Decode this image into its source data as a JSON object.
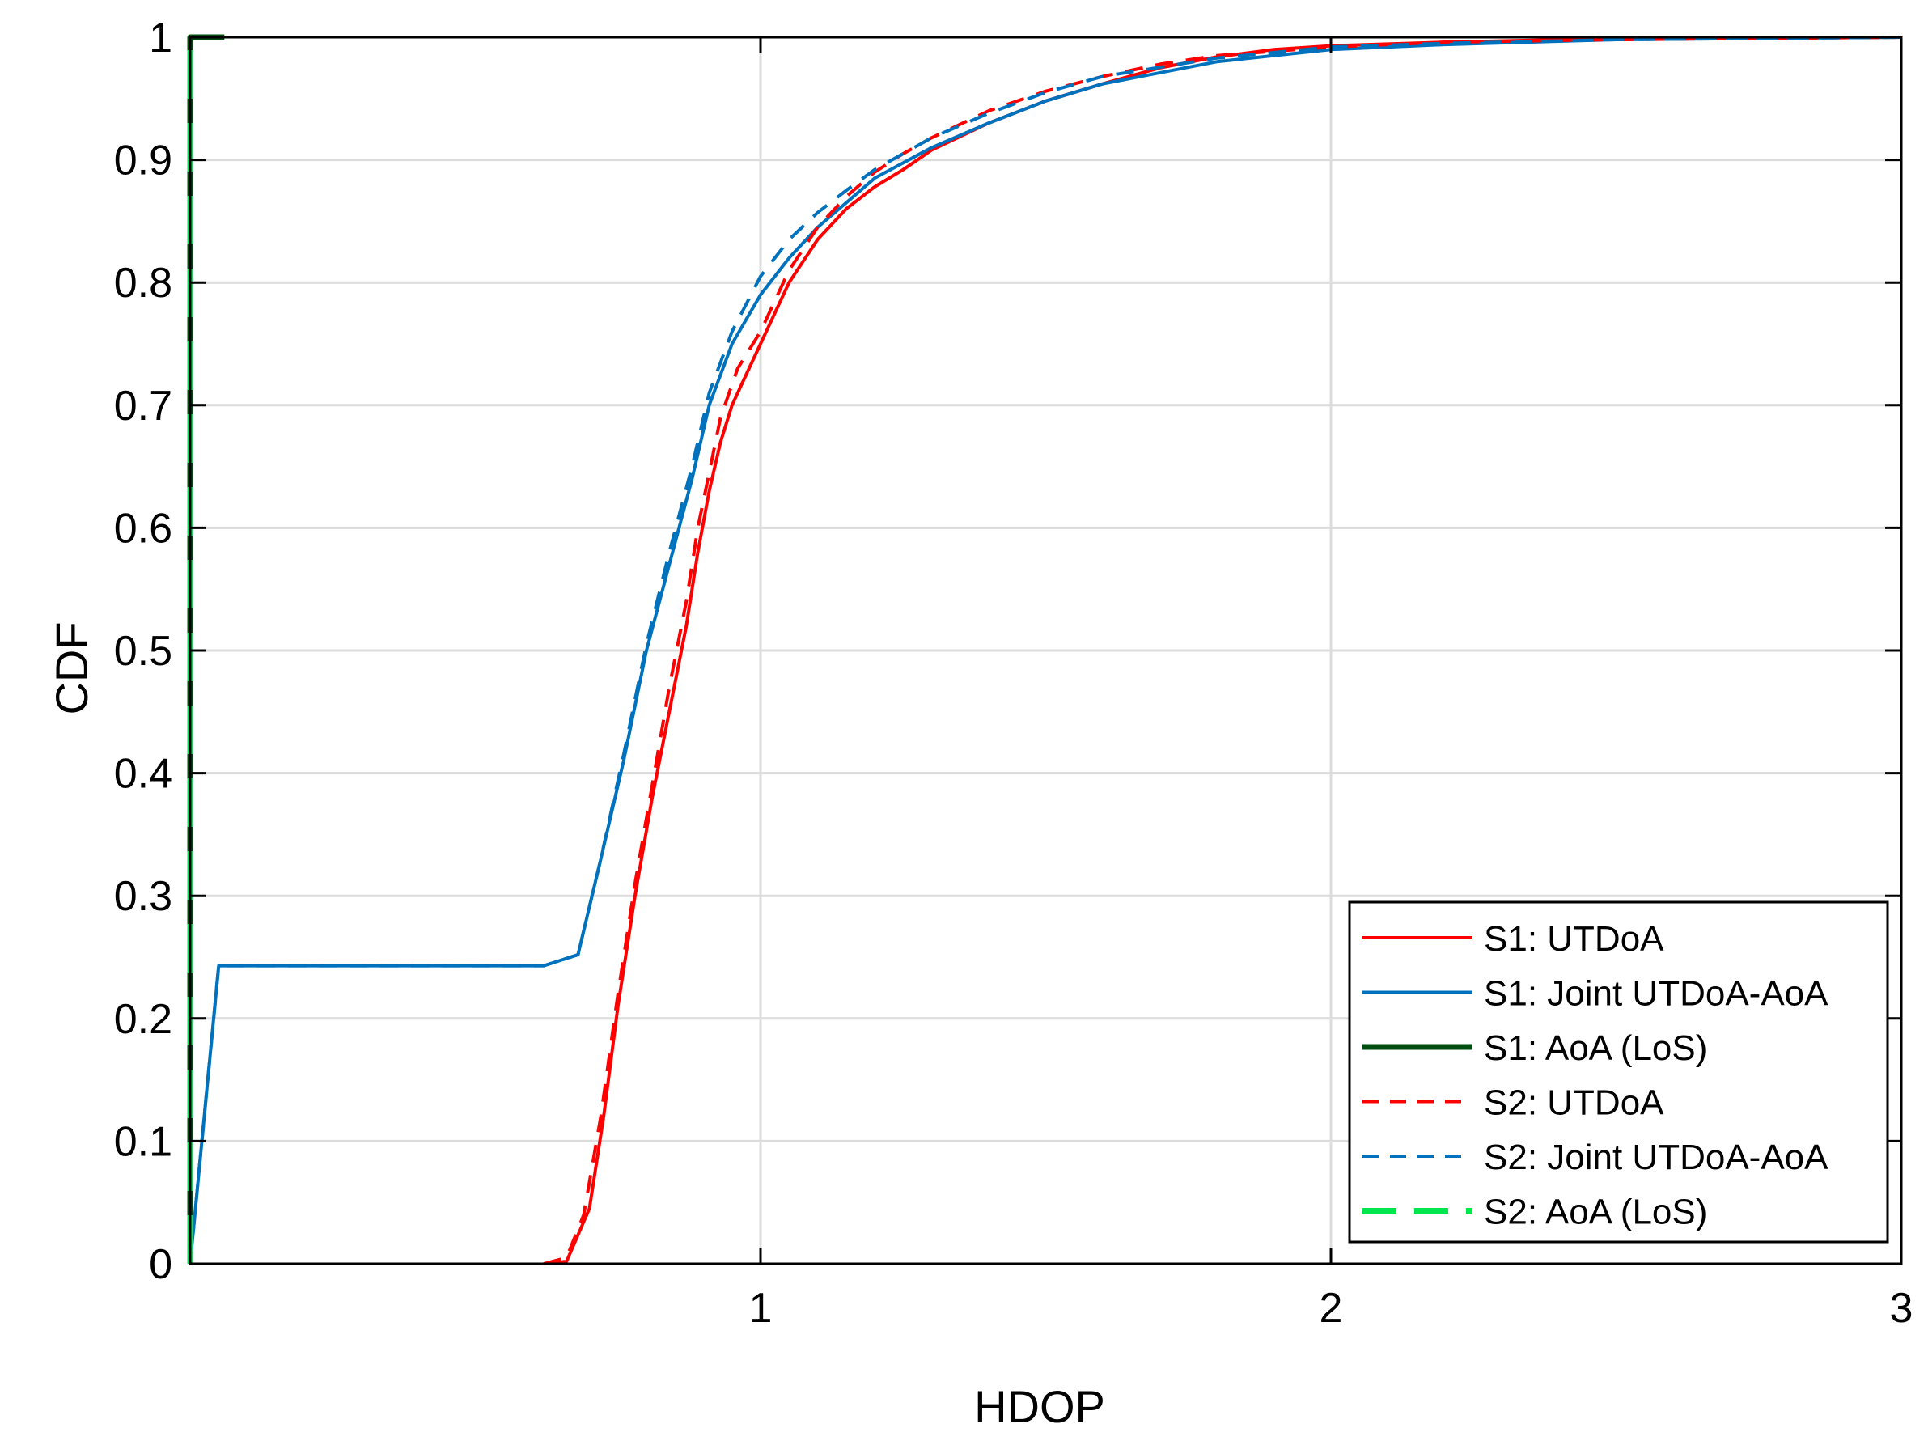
{
  "chart_data": {
    "type": "line",
    "title": "",
    "xlabel": "HDOP",
    "ylabel": "CDF",
    "xlim": [
      0,
      3
    ],
    "ylim": [
      0,
      1
    ],
    "xticks": [
      1,
      2,
      3
    ],
    "xtick_labels": [
      "1",
      "2",
      "3"
    ],
    "yticks": [
      0,
      0.1,
      0.2,
      0.3,
      0.4,
      0.5,
      0.6,
      0.7,
      0.8,
      0.9,
      1
    ],
    "ytick_labels": [
      "0",
      "0.1",
      "0.2",
      "0.3",
      "0.4",
      "0.5",
      "0.6",
      "0.7",
      "0.8",
      "0.9",
      "1"
    ],
    "grid": true,
    "legend_position": "bottom-right",
    "series": [
      {
        "name": "S1: UTDoA",
        "color": "#ff0000",
        "style": "solid",
        "width": 4,
        "x": [
          0.62,
          0.66,
          0.7,
          0.725,
          0.75,
          0.78,
          0.81,
          0.84,
          0.87,
          0.89,
          0.91,
          0.93,
          0.95,
          0.97,
          1.0,
          1.05,
          1.1,
          1.15,
          1.2,
          1.25,
          1.3,
          1.4,
          1.5,
          1.6,
          1.7,
          1.8,
          1.9,
          2.0,
          2.2,
          2.4,
          2.6,
          3.0
        ],
        "y": [
          0.0,
          0.002,
          0.045,
          0.12,
          0.21,
          0.3,
          0.38,
          0.45,
          0.52,
          0.58,
          0.63,
          0.67,
          0.7,
          0.72,
          0.75,
          0.8,
          0.835,
          0.86,
          0.878,
          0.892,
          0.908,
          0.93,
          0.948,
          0.962,
          0.975,
          0.984,
          0.99,
          0.993,
          0.996,
          0.998,
          0.999,
          1.0
        ]
      },
      {
        "name": "S1: Joint UTDoA-AoA",
        "color": "#0072bd",
        "style": "solid",
        "width": 4,
        "x": [
          0.0,
          0.05,
          0.6,
          0.62,
          0.68,
          0.72,
          0.76,
          0.8,
          0.84,
          0.88,
          0.91,
          0.95,
          1.0,
          1.05,
          1.1,
          1.15,
          1.2,
          1.3,
          1.4,
          1.5,
          1.6,
          1.8,
          2.0,
          2.2,
          2.5,
          3.0
        ],
        "y": [
          0.0,
          0.243,
          0.243,
          0.243,
          0.252,
          0.33,
          0.41,
          0.5,
          0.57,
          0.64,
          0.7,
          0.75,
          0.79,
          0.82,
          0.845,
          0.865,
          0.885,
          0.91,
          0.93,
          0.948,
          0.962,
          0.98,
          0.99,
          0.994,
          0.998,
          1.0
        ]
      },
      {
        "name": "S1: AoA (LoS)",
        "color": "#004d12",
        "style": "solid",
        "width": 7,
        "x": [
          0.0,
          0.0,
          0.06
        ],
        "y": [
          0.0,
          1.0,
          1.0
        ]
      },
      {
        "name": "S2: UTDoA",
        "color": "#ff0000",
        "style": "dotted",
        "width": 4,
        "x": [
          0.62,
          0.66,
          0.69,
          0.72,
          0.75,
          0.78,
          0.81,
          0.84,
          0.87,
          0.89,
          0.91,
          0.93,
          0.96,
          1.0,
          1.05,
          1.1,
          1.15,
          1.2,
          1.25,
          1.3,
          1.4,
          1.5,
          1.6,
          1.7,
          1.8,
          2.0,
          2.2,
          2.5,
          3.0
        ],
        "y": [
          0.0,
          0.005,
          0.04,
          0.12,
          0.22,
          0.31,
          0.39,
          0.47,
          0.54,
          0.6,
          0.645,
          0.69,
          0.73,
          0.76,
          0.81,
          0.845,
          0.87,
          0.89,
          0.905,
          0.918,
          0.94,
          0.956,
          0.968,
          0.978,
          0.985,
          0.992,
          0.996,
          0.998,
          1.0
        ]
      },
      {
        "name": "S2: Joint UTDoA-AoA",
        "color": "#0072bd",
        "style": "dotted",
        "width": 4,
        "x": [
          0.0,
          0.05,
          0.6,
          0.62,
          0.68,
          0.72,
          0.76,
          0.8,
          0.84,
          0.88,
          0.91,
          0.95,
          1.0,
          1.05,
          1.1,
          1.15,
          1.2,
          1.3,
          1.4,
          1.5,
          1.6,
          1.8,
          2.0,
          2.2,
          2.5,
          3.0
        ],
        "y": [
          0.0,
          0.243,
          0.243,
          0.243,
          0.252,
          0.33,
          0.415,
          0.505,
          0.58,
          0.65,
          0.71,
          0.76,
          0.805,
          0.835,
          0.857,
          0.875,
          0.892,
          0.918,
          0.938,
          0.955,
          0.968,
          0.983,
          0.992,
          0.995,
          0.998,
          1.0
        ]
      },
      {
        "name": "S2: AoA (LoS)",
        "color": "#00e64d",
        "style": "dashed",
        "width": 7,
        "x": [
          0.0,
          0.0
        ],
        "y": [
          0.0,
          1.0
        ]
      }
    ]
  }
}
